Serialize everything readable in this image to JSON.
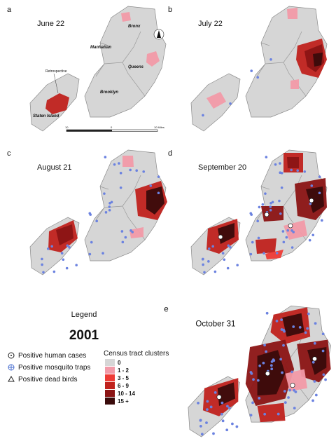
{
  "panels": [
    {
      "letter": "a",
      "date": "June 22"
    },
    {
      "letter": "b",
      "date": "July 22"
    },
    {
      "letter": "c",
      "date": "August 21"
    },
    {
      "letter": "d",
      "date": "September 20"
    },
    {
      "letter": "e",
      "date": "October 31"
    }
  ],
  "borough_labels": [
    "Bronx",
    "Manhattan",
    "Queens",
    "Brooklyn",
    "Staten Island"
  ],
  "annotation": "Retrospective",
  "scale_bar": [
    "10",
    "0",
    "10 Miles"
  ],
  "legend": {
    "title": "Legend",
    "year": "2001",
    "symbols": [
      "Positive human cases",
      "Positive mosquito traps",
      "Positive dead birds"
    ],
    "clusters_title": "Census tract clusters",
    "classes": [
      {
        "label": "0",
        "color": "#d6d6d6"
      },
      {
        "label": "1 - 2",
        "color": "#f29aa8"
      },
      {
        "label": "3 - 5",
        "color": "#ee3b36"
      },
      {
        "label": "6 - 9",
        "color": "#c0221d"
      },
      {
        "label": "10 - 14",
        "color": "#8b1414"
      },
      {
        "label": "15 +",
        "color": "#3a0b0b"
      }
    ]
  }
}
